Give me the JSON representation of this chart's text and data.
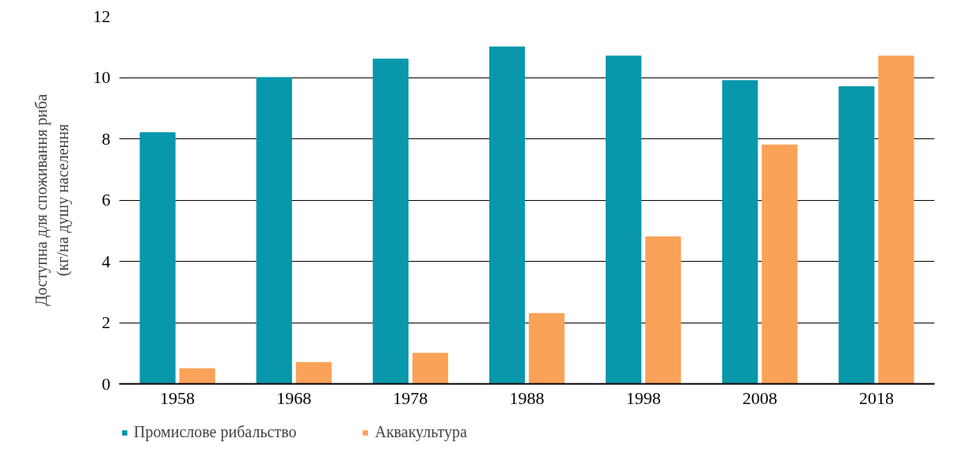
{
  "chart_data": {
    "type": "bar",
    "ylabel": "Доступна для споживання риба\n(кг/на душу населення",
    "categories": [
      "1958",
      "1968",
      "1978",
      "1988",
      "1998",
      "2008",
      "2018"
    ],
    "series": [
      {
        "name": "Промислове рибальство",
        "color": "#0897ab",
        "values": [
          8.2,
          10.0,
          10.6,
          11.0,
          10.7,
          9.9,
          9.7
        ]
      },
      {
        "name": "Аквакультура",
        "color": "#f9a258",
        "values": [
          0.5,
          0.7,
          1.0,
          2.3,
          4.8,
          7.8,
          10.7
        ]
      }
    ],
    "ylim": [
      0,
      12
    ],
    "yticks": [
      0,
      2,
      4,
      6,
      8,
      10,
      12
    ],
    "grid": "y",
    "legend": "bottom left"
  }
}
